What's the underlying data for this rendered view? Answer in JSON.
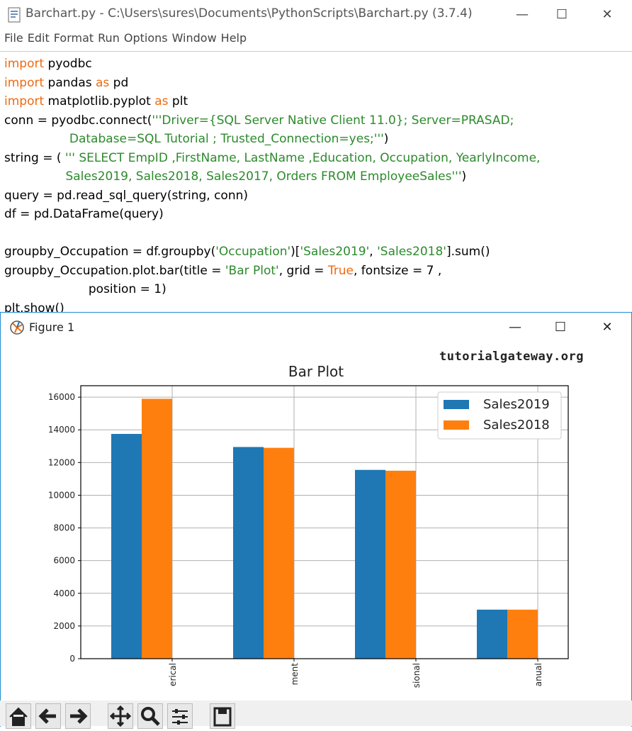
{
  "idle": {
    "title": "Barchart.py - C:\\Users\\sures\\Documents\\PythonScripts\\Barchart.py (3.7.4)",
    "menu": [
      "File",
      "Edit",
      "Format",
      "Run",
      "Options",
      "Window",
      "Help"
    ],
    "code_lines": [
      [
        {
          "t": "import",
          "c": "kw"
        },
        {
          "t": " pyodbc",
          "c": ""
        }
      ],
      [
        {
          "t": "import",
          "c": "kw"
        },
        {
          "t": " pandas ",
          "c": ""
        },
        {
          "t": "as",
          "c": "kw"
        },
        {
          "t": " pd",
          "c": ""
        }
      ],
      [
        {
          "t": "import",
          "c": "kw"
        },
        {
          "t": " matplotlib.pyplot ",
          "c": ""
        },
        {
          "t": "as",
          "c": "kw"
        },
        {
          "t": " plt",
          "c": ""
        }
      ],
      [
        {
          "t": "conn = pyodbc.connect(",
          "c": ""
        },
        {
          "t": "'''Driver={SQL Server Native Client 11.0}; Server=PRASAD;",
          "c": "str"
        }
      ],
      [
        {
          "t": "                 ",
          "c": ""
        },
        {
          "t": "Database=SQL Tutorial ; Trusted_Connection=yes;'''",
          "c": "str"
        },
        {
          "t": ")",
          "c": ""
        }
      ],
      [
        {
          "t": "string = ( ",
          "c": ""
        },
        {
          "t": "''' SELECT EmpID ,FirstName, LastName ,Education, Occupation, YearlyIncome,",
          "c": "str"
        }
      ],
      [
        {
          "t": "                ",
          "c": ""
        },
        {
          "t": "Sales2019, Sales2018, Sales2017, Orders FROM EmployeeSales'''",
          "c": "str"
        },
        {
          "t": ")",
          "c": ""
        }
      ],
      [
        {
          "t": "query = pd.read_sql_query(string, conn)",
          "c": ""
        }
      ],
      [
        {
          "t": "df = pd.DataFrame(query)",
          "c": ""
        }
      ],
      [
        {
          "t": "",
          "c": ""
        }
      ],
      [
        {
          "t": "groupby_Occupation = df.groupby(",
          "c": ""
        },
        {
          "t": "'Occupation'",
          "c": "str"
        },
        {
          "t": ")[",
          "c": ""
        },
        {
          "t": "'Sales2019'",
          "c": "str"
        },
        {
          "t": ", ",
          "c": ""
        },
        {
          "t": "'Sales2018'",
          "c": "str"
        },
        {
          "t": "].sum()",
          "c": ""
        }
      ],
      [
        {
          "t": "groupby_Occupation.plot.bar(title = ",
          "c": ""
        },
        {
          "t": "'Bar Plot'",
          "c": "str"
        },
        {
          "t": ", grid = ",
          "c": ""
        },
        {
          "t": "True",
          "c": "kw"
        },
        {
          "t": ", fontsize = 7 ,",
          "c": ""
        }
      ],
      [
        {
          "t": "                      position = 1)",
          "c": ""
        }
      ],
      [
        {
          "t": "plt.show()",
          "c": ""
        }
      ]
    ]
  },
  "figure": {
    "title": "Figure 1",
    "watermark": "tutorialgateway.org"
  },
  "chart_data": {
    "type": "bar",
    "title": "Bar Plot",
    "categories": [
      "erical",
      "ment",
      "sional",
      "anual"
    ],
    "series": [
      {
        "name": "Sales2019",
        "values": [
          13750,
          12950,
          11550,
          3000
        ],
        "color": "#1f77b4"
      },
      {
        "name": "Sales2018",
        "values": [
          15900,
          12900,
          11500,
          3000
        ],
        "color": "#ff7f0e"
      }
    ],
    "yticks": [
      "0",
      "2000",
      "4000",
      "6000",
      "8000",
      "10000",
      "12000",
      "14000",
      "16000"
    ],
    "ylim": [
      0,
      16700
    ],
    "grid": true,
    "legend": "top-right"
  }
}
